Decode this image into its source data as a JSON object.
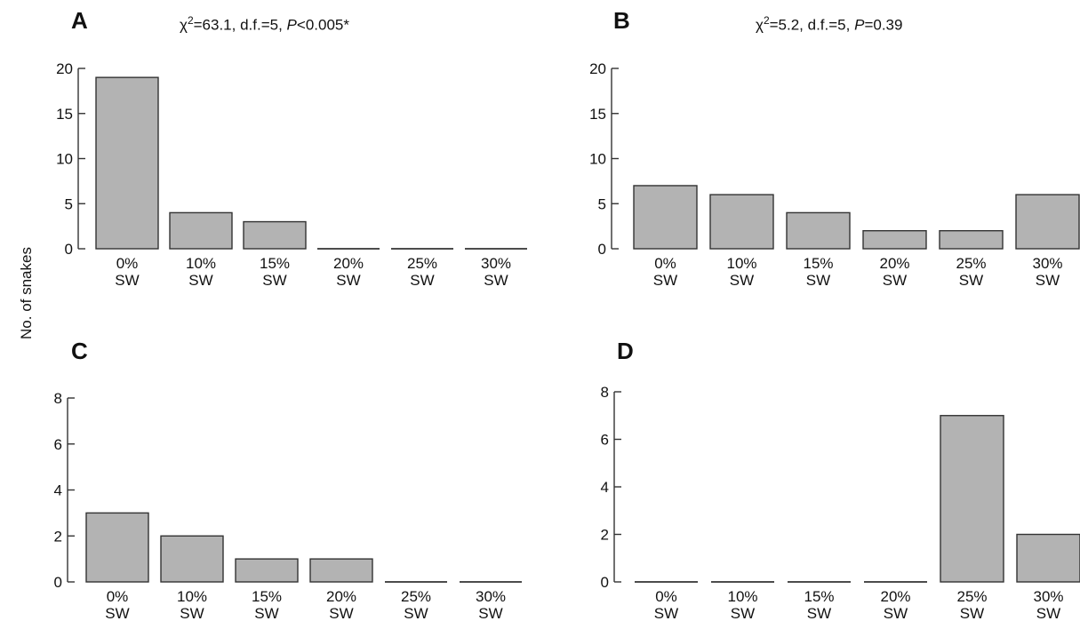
{
  "shared_ylabel": "No. of snakes",
  "panels": [
    {
      "letter": "A",
      "stat": {
        "chi_prefix": "χ",
        "chi_sup": "2",
        "chi_rest": "=63.1, d.f.=5, ",
        "p_label": "P",
        "p_rest": "<0.005*"
      }
    },
    {
      "letter": "B",
      "stat": {
        "chi_prefix": "χ",
        "chi_sup": "2",
        "chi_rest": "=5.2, d.f.=5, ",
        "p_label": "P",
        "p_rest": "=0.39"
      }
    },
    {
      "letter": "C"
    },
    {
      "letter": "D"
    }
  ],
  "chart_data": [
    {
      "type": "bar",
      "panel": "A",
      "categories": [
        "0%\nSW",
        "10%\nSW",
        "15%\nSW",
        "20%\nSW",
        "25%\nSW",
        "30%\nSW"
      ],
      "values": [
        19,
        4,
        3,
        0,
        0,
        0
      ],
      "ylim": [
        0,
        20
      ],
      "yticks": [
        0,
        5,
        10,
        15,
        20
      ],
      "bar_color": "#b3b3b3"
    },
    {
      "type": "bar",
      "panel": "B",
      "categories": [
        "0%\nSW",
        "10%\nSW",
        "15%\nSW",
        "20%\nSW",
        "25%\nSW",
        "30%\nSW"
      ],
      "values": [
        7,
        6,
        4,
        2,
        2,
        6
      ],
      "ylim": [
        0,
        20
      ],
      "yticks": [
        0,
        5,
        10,
        15,
        20
      ],
      "bar_color": "#b3b3b3"
    },
    {
      "type": "bar",
      "panel": "C",
      "categories": [
        "0%\nSW",
        "10%\nSW",
        "15%\nSW",
        "20%\nSW",
        "25%\nSW",
        "30%\nSW"
      ],
      "values": [
        3,
        2,
        1,
        1,
        0,
        0
      ],
      "ylim": [
        0,
        8
      ],
      "yticks": [
        0,
        2,
        4,
        6,
        8
      ],
      "bar_color": "#b3b3b3"
    },
    {
      "type": "bar",
      "panel": "D",
      "categories": [
        "0%\nSW",
        "10%\nSW",
        "15%\nSW",
        "20%\nSW",
        "25%\nSW",
        "30%\nSW"
      ],
      "values": [
        0,
        0,
        0,
        0,
        7,
        2
      ],
      "ylim": [
        0,
        8
      ],
      "yticks": [
        0,
        2,
        4,
        6,
        8
      ],
      "bar_color": "#b3b3b3"
    }
  ]
}
